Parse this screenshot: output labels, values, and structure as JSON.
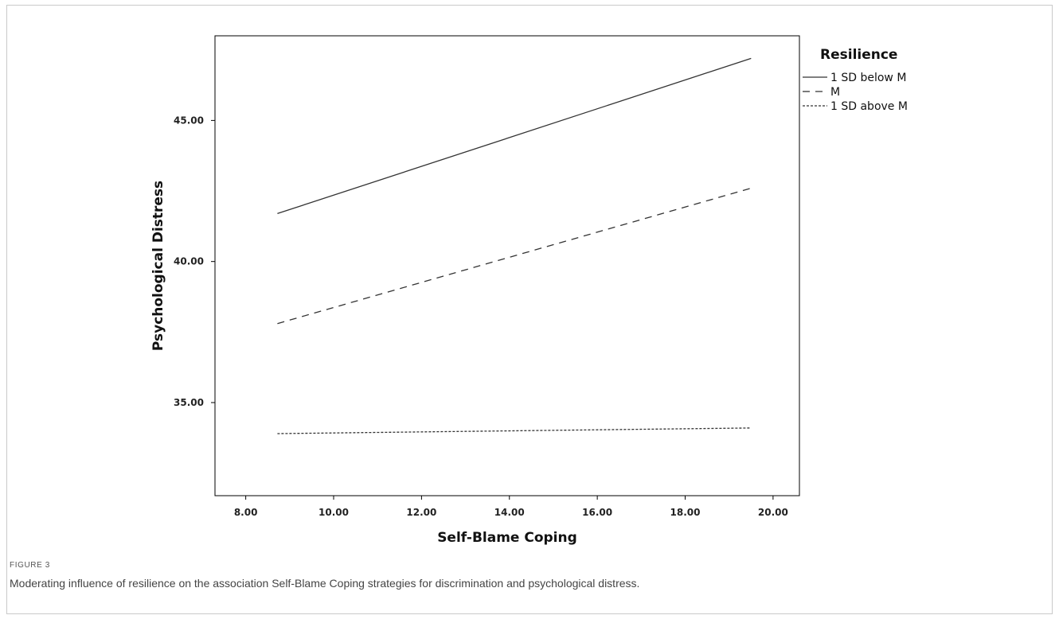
{
  "caption": {
    "label": "FIGURE 3",
    "text": "Moderating influence of resilience on the association Self-Blame Coping strategies for discrimination and psychological distress."
  },
  "chart_data": {
    "type": "line",
    "title": "",
    "xlabel": "Self-Blame Coping",
    "ylabel": "Psychological Distress",
    "xlim": [
      7.3,
      20.6
    ],
    "ylim": [
      31.7,
      48.0
    ],
    "x_ticks": [
      8,
      10,
      12,
      14,
      16,
      18,
      20
    ],
    "x_tick_labels": [
      "8.00",
      "10.00",
      "12.00",
      "14.00",
      "16.00",
      "18.00",
      "20.00"
    ],
    "y_ticks": [
      35,
      40,
      45
    ],
    "y_tick_labels": [
      "35.00",
      "40.00",
      "45.00"
    ],
    "grid": false,
    "legend_title": "Resilience",
    "legend_position": "top-right",
    "series": [
      {
        "name": "1 SD below M",
        "style": "solid",
        "color": "#333333",
        "x": [
          8.72,
          19.5
        ],
        "y": [
          41.7,
          47.2
        ]
      },
      {
        "name": "M",
        "style": "dashed",
        "color": "#333333",
        "x": [
          8.72,
          19.5
        ],
        "y": [
          37.8,
          42.6
        ]
      },
      {
        "name": "1 SD above M",
        "style": "dotted",
        "color": "#333333",
        "x": [
          8.72,
          19.5
        ],
        "y": [
          33.9,
          34.1
        ]
      }
    ]
  }
}
